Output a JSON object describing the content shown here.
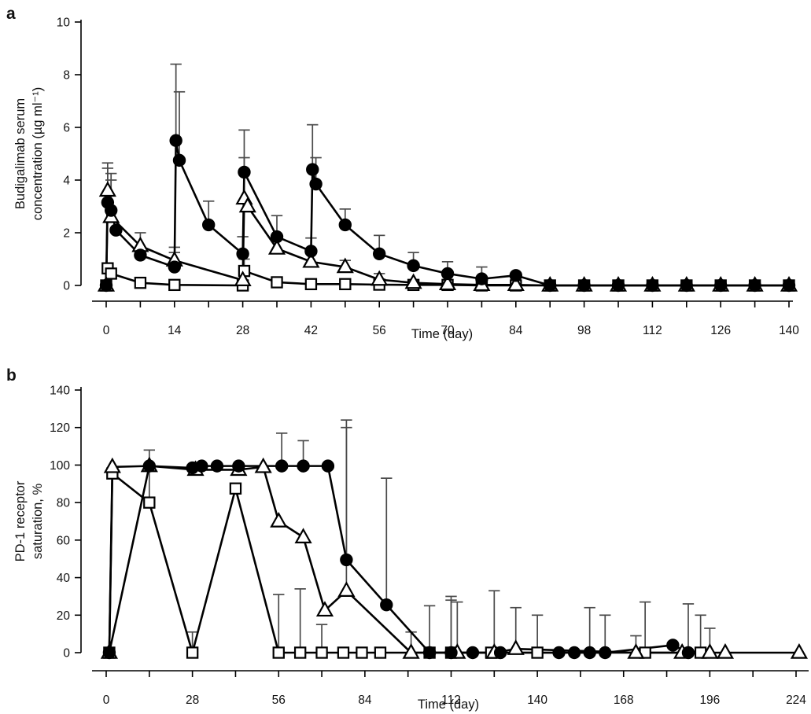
{
  "figure": {
    "background": "#ffffff",
    "line_color": "#000000",
    "error_bar_color": "#4a4a4a",
    "panels": [
      "a",
      "b"
    ]
  },
  "chart_data": [
    {
      "type": "line",
      "panel": "a",
      "panel_label": "a",
      "xlabel": "Time (day)",
      "ylabel_lines": [
        "Budigalimab serum",
        "concentration (µg ml⁻¹)"
      ],
      "xlim": [
        0,
        140
      ],
      "ylim": [
        0,
        10
      ],
      "x_major_ticks": [
        0,
        14,
        28,
        42,
        56,
        70,
        84,
        98,
        112,
        126,
        140
      ],
      "x_minor_ticks": [
        7,
        21,
        35,
        49,
        63,
        77,
        91,
        105,
        119,
        133
      ],
      "yticks": [
        0,
        2,
        4,
        6,
        8,
        10
      ],
      "grid": false,
      "legend": "none",
      "series": [
        {
          "name": "filled-circle",
          "marker": "circle",
          "points": [
            {
              "x": 0,
              "y": 0
            },
            {
              "x": 0.3,
              "y": 3.15,
              "e": 4.45
            },
            {
              "x": 1,
              "y": 2.85,
              "e": 4.25
            },
            {
              "x": 2,
              "y": 2.1
            },
            {
              "x": 7,
              "y": 1.15
            },
            {
              "x": 14,
              "y": 0.7,
              "e": 1.25
            },
            {
              "x": 14.3,
              "y": 5.5,
              "e": 8.4
            },
            {
              "x": 15,
              "y": 4.75,
              "e": 7.35
            },
            {
              "x": 21,
              "y": 2.3,
              "e": 3.2
            },
            {
              "x": 28,
              "y": 1.2,
              "e": 1.85
            },
            {
              "x": 28.3,
              "y": 4.3,
              "e": 5.9
            },
            {
              "x": 35,
              "y": 1.85,
              "e": 2.65
            },
            {
              "x": 42,
              "y": 1.3,
              "e": 1.8
            },
            {
              "x": 42.3,
              "y": 4.4,
              "e": 6.1
            },
            {
              "x": 43,
              "y": 3.85,
              "e": 4.85
            },
            {
              "x": 49,
              "y": 2.3,
              "e": 2.9
            },
            {
              "x": 56,
              "y": 1.2,
              "e": 1.9
            },
            {
              "x": 63,
              "y": 0.75,
              "e": 1.25
            },
            {
              "x": 70,
              "y": 0.45,
              "e": 0.9
            },
            {
              "x": 77,
              "y": 0.25,
              "e": 0.7
            },
            {
              "x": 84,
              "y": 0.38
            },
            {
              "x": 91,
              "y": 0
            },
            {
              "x": 98,
              "y": 0
            },
            {
              "x": 105,
              "y": 0
            },
            {
              "x": 112,
              "y": 0
            },
            {
              "x": 119,
              "y": 0
            },
            {
              "x": 126,
              "y": 0
            },
            {
              "x": 133,
              "y": 0
            },
            {
              "x": 140,
              "y": 0
            }
          ]
        },
        {
          "name": "open-triangle",
          "marker": "triangle",
          "points": [
            {
              "x": 0,
              "y": 0
            },
            {
              "x": 0.3,
              "y": 3.6,
              "e": 4.65
            },
            {
              "x": 1,
              "y": 2.6,
              "e": 4.0
            },
            {
              "x": 7,
              "y": 1.5,
              "e": 2.0
            },
            {
              "x": 14,
              "y": 0.95,
              "e": 1.45
            },
            {
              "x": 28,
              "y": 0.2
            },
            {
              "x": 28.3,
              "y": 3.3,
              "e": 4.85
            },
            {
              "x": 29,
              "y": 3.0
            },
            {
              "x": 35,
              "y": 1.4
            },
            {
              "x": 42,
              "y": 0.9
            },
            {
              "x": 49,
              "y": 0.7,
              "e": 0.95
            },
            {
              "x": 56,
              "y": 0.22,
              "e": 0.45
            },
            {
              "x": 63,
              "y": 0.1
            },
            {
              "x": 70,
              "y": 0.05
            },
            {
              "x": 77,
              "y": 0.02
            },
            {
              "x": 84,
              "y": 0.02
            },
            {
              "x": 91,
              "y": 0
            },
            {
              "x": 98,
              "y": 0
            },
            {
              "x": 105,
              "y": 0
            },
            {
              "x": 112,
              "y": 0
            },
            {
              "x": 119,
              "y": 0
            },
            {
              "x": 126,
              "y": 0
            },
            {
              "x": 133,
              "y": 0
            },
            {
              "x": 140,
              "y": 0
            }
          ]
        },
        {
          "name": "open-square",
          "marker": "square",
          "points": [
            {
              "x": 0,
              "y": 0
            },
            {
              "x": 0.3,
              "y": 0.65
            },
            {
              "x": 1,
              "y": 0.45
            },
            {
              "x": 7,
              "y": 0.1
            },
            {
              "x": 14,
              "y": 0.02
            },
            {
              "x": 28,
              "y": 0
            },
            {
              "x": 28.3,
              "y": 0.55,
              "e": 1.0
            },
            {
              "x": 35,
              "y": 0.12
            },
            {
              "x": 42,
              "y": 0.05
            },
            {
              "x": 49,
              "y": 0.05
            },
            {
              "x": 56,
              "y": 0.03
            },
            {
              "x": 63,
              "y": 0.02
            },
            {
              "x": 70,
              "y": 0.02
            },
            {
              "x": 77,
              "y": 0
            },
            {
              "x": 84,
              "y": 0
            },
            {
              "x": 91,
              "y": 0
            },
            {
              "x": 98,
              "y": 0
            },
            {
              "x": 105,
              "y": 0
            },
            {
              "x": 112,
              "y": 0
            },
            {
              "x": 119,
              "y": 0
            },
            {
              "x": 126,
              "y": 0
            },
            {
              "x": 133,
              "y": 0
            },
            {
              "x": 140,
              "y": 0
            }
          ]
        }
      ]
    },
    {
      "type": "line",
      "panel": "b",
      "panel_label": "b",
      "xlabel": "Time (day)",
      "ylabel_lines": [
        "PD-1 receptor",
        "saturation, %"
      ],
      "xlim": [
        0,
        224
      ],
      "ylim": [
        0,
        140
      ],
      "x_major_ticks": [
        0,
        28,
        56,
        84,
        112,
        140,
        168,
        196,
        224
      ],
      "x_minor_ticks": [
        14,
        42,
        70,
        98,
        126,
        154,
        182,
        210
      ],
      "yticks": [
        0,
        20,
        40,
        60,
        80,
        100,
        120,
        140
      ],
      "grid": false,
      "legend": "none",
      "series": [
        {
          "name": "filled-circle",
          "marker": "circle",
          "points": [
            {
              "x": 1,
              "y": 0
            },
            {
              "x": 14,
              "y": 99.5,
              "e": 108
            },
            {
              "x": 28,
              "y": 98.5
            },
            {
              "x": 31,
              "y": 99.5
            },
            {
              "x": 36,
              "y": 99.5
            },
            {
              "x": 43,
              "y": 99.5
            },
            {
              "x": 57,
              "y": 99.5,
              "e": 117
            },
            {
              "x": 64,
              "y": 99.5,
              "e": 113
            },
            {
              "x": 72,
              "y": 99.5
            },
            {
              "x": 78,
              "y": 49.5,
              "e": 124
            },
            {
              "x": 91,
              "y": 25.5,
              "e": 93
            },
            {
              "x": 105,
              "y": 0,
              "e": 25
            },
            {
              "x": 112,
              "y": 0,
              "e": 28
            },
            {
              "x": 119,
              "y": 0
            },
            {
              "x": 128,
              "y": 0
            },
            {
              "x": 147,
              "y": 0
            },
            {
              "x": 152,
              "y": 0
            },
            {
              "x": 157,
              "y": 0,
              "e": 24
            },
            {
              "x": 162,
              "y": 0,
              "e": 20
            },
            {
              "x": 184,
              "y": 4
            },
            {
              "x": 189,
              "y": 0,
              "e": 26
            }
          ]
        },
        {
          "name": "open-triangle",
          "marker": "triangle",
          "points": [
            {
              "x": 1,
              "y": 0
            },
            {
              "x": 2,
              "y": 99
            },
            {
              "x": 14,
              "y": 99.5
            },
            {
              "x": 29,
              "y": 97.5
            },
            {
              "x": 43,
              "y": 97.5
            },
            {
              "x": 51,
              "y": 99
            },
            {
              "x": 56,
              "y": 70
            },
            {
              "x": 64,
              "y": 61.5
            },
            {
              "x": 71,
              "y": 22.5
            },
            {
              "x": 78,
              "y": 33,
              "e": 120
            },
            {
              "x": 99,
              "y": 0,
              "e": 11
            },
            {
              "x": 114,
              "y": 0,
              "e": 27
            },
            {
              "x": 126,
              "y": 0,
              "e": 33
            },
            {
              "x": 133,
              "y": 2,
              "e": 24
            },
            {
              "x": 172,
              "y": 0,
              "e": 9
            },
            {
              "x": 187,
              "y": 0
            },
            {
              "x": 196,
              "y": 0,
              "e": 13
            },
            {
              "x": 201,
              "y": 0
            },
            {
              "x": 225,
              "y": 0
            }
          ]
        },
        {
          "name": "open-square",
          "marker": "square",
          "points": [
            {
              "x": 1,
              "y": 0
            },
            {
              "x": 2,
              "y": 95.5
            },
            {
              "x": 14,
              "y": 80,
              "e": 99
            },
            {
              "x": 28,
              "y": 0,
              "e": 11
            },
            {
              "x": 42,
              "y": 87.5
            },
            {
              "x": 56,
              "y": 0,
              "e": 31
            },
            {
              "x": 63,
              "y": 0,
              "e": 34
            },
            {
              "x": 70,
              "y": 0,
              "e": 15
            },
            {
              "x": 77,
              "y": 0
            },
            {
              "x": 83,
              "y": 0
            },
            {
              "x": 89,
              "y": 0
            },
            {
              "x": 105,
              "y": 0
            },
            {
              "x": 112,
              "y": 0,
              "e": 30
            },
            {
              "x": 125,
              "y": 0
            },
            {
              "x": 140,
              "y": 0,
              "e": 20
            },
            {
              "x": 175,
              "y": 0,
              "e": 27
            },
            {
              "x": 193,
              "y": 0,
              "e": 20
            }
          ]
        }
      ]
    }
  ]
}
